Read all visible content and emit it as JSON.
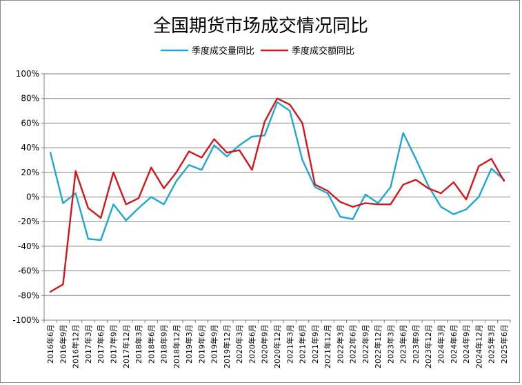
{
  "chart_data": {
    "type": "line",
    "title": "全国期货市场成交情况同比",
    "ylim": [
      -1.0,
      1.0
    ],
    "yticks": [
      1.0,
      0.8,
      0.6,
      0.4,
      0.2,
      0.0,
      -0.2,
      -0.4,
      -0.6,
      -0.8,
      -1.0
    ],
    "ytick_labels": [
      "100%",
      "80%",
      "60%",
      "40%",
      "20%",
      "0%",
      "-20%",
      "-40%",
      "-60%",
      "-80%",
      "-100%"
    ],
    "grid": true,
    "legend_position": "top-center",
    "categories": [
      "2016年6月",
      "2016年9月",
      "2016年12月",
      "2017年3月",
      "2017年6月",
      "2017年9月",
      "2017年12月",
      "2018年3月",
      "2018年6月",
      "2018年9月",
      "2018年12月",
      "2019年3月",
      "2019年6月",
      "2019年9月",
      "2019年12月",
      "2020年3月",
      "2020年6月",
      "2020年9月",
      "2020年12月",
      "2021年3月",
      "2021年6月",
      "2021年9月",
      "2021年12月",
      "2022年3月",
      "2022年6月",
      "2022年9月",
      "2022年12月",
      "2023年3月",
      "2023年6月",
      "2023年9月",
      "2023年12月",
      "2024年3月",
      "2024年6月",
      "2024年9月",
      "2024年12月",
      "2025年3月",
      "2025年6月"
    ],
    "series": [
      {
        "name": "季度成交量同比",
        "color": "#1fa7d4",
        "values": [
          0.36,
          -0.05,
          0.03,
          -0.34,
          -0.35,
          -0.06,
          -0.19,
          -0.09,
          0.0,
          -0.06,
          0.13,
          0.26,
          0.22,
          0.42,
          0.33,
          0.42,
          0.49,
          0.5,
          0.77,
          0.7,
          0.3,
          0.08,
          0.03,
          -0.16,
          -0.18,
          0.02,
          -0.05,
          0.08,
          0.52,
          0.31,
          0.09,
          -0.08,
          -0.14,
          -0.1,
          0.0,
          0.23,
          0.14
        ]
      },
      {
        "name": "季度成交额同比",
        "color": "#d4161c",
        "values": [
          -0.77,
          -0.71,
          0.21,
          -0.09,
          -0.17,
          0.2,
          -0.06,
          -0.01,
          0.24,
          0.07,
          0.2,
          0.37,
          0.32,
          0.47,
          0.36,
          0.38,
          0.22,
          0.61,
          0.8,
          0.75,
          0.6,
          0.1,
          0.05,
          -0.04,
          -0.08,
          -0.05,
          -0.06,
          -0.06,
          0.1,
          0.14,
          0.07,
          0.03,
          0.12,
          -0.02,
          0.25,
          0.31,
          0.13
        ]
      }
    ]
  }
}
